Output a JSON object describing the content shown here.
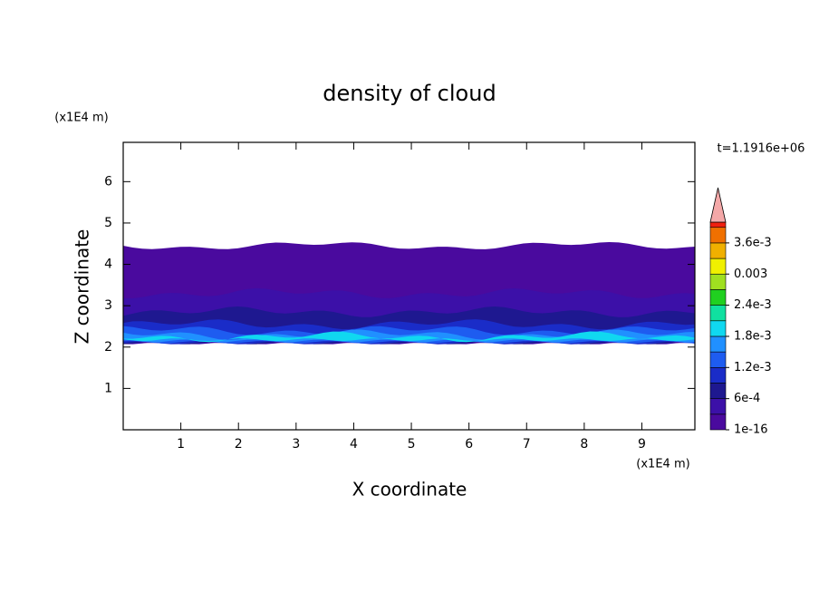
{
  "chart_data": {
    "type": "contour",
    "title": "density of cloud",
    "x_label": "X coordinate",
    "y_label": "Z coordinate",
    "x_unit": "(x1E4 m)",
    "y_unit": "(x1E4 m)",
    "time_label": "t=1.1916e+06",
    "xlim": [
      0,
      9.92
    ],
    "ylim": [
      0,
      6.95
    ],
    "xticks": [
      1,
      2,
      3,
      4,
      5,
      6,
      7,
      8,
      9
    ],
    "yticks": [
      1,
      2,
      3,
      4,
      5,
      6
    ],
    "colorbar": {
      "levels": [
        1e-16,
        0.0003,
        0.0006,
        0.0009,
        0.0012,
        0.0015,
        0.0018,
        0.0021,
        0.0024,
        0.0027,
        0.003,
        0.0033,
        0.0036,
        0.0039
      ],
      "colors": [
        "#4a0a9e",
        "#3c10a8",
        "#1e1890",
        "#1a2cc8",
        "#1e5cf0",
        "#2090ff",
        "#10d8f0",
        "#10e0a0",
        "#20d020",
        "#a0e020",
        "#f0f000",
        "#f0b000",
        "#f07000",
        "#f02010"
      ],
      "extend_color": "#f4a8a8",
      "clim": [
        0,
        0.004
      ],
      "ticks": [
        1e-16,
        {
          "value": 0.0006,
          "label": "6e-4"
        },
        {
          "value": 0.0012,
          "label": "1.2e-3"
        },
        {
          "value": 0.0018,
          "label": "1.8e-3"
        },
        {
          "value": 0.0024,
          "label": "2.4e-3"
        },
        0.003,
        {
          "value": 0.0036,
          "label": "3.6e-3"
        }
      ]
    },
    "layers": [
      {
        "z": [
          2.1,
          4.45
        ]
      },
      {
        "z": [
          2.1,
          3.3
        ]
      },
      {
        "z": [
          2.1,
          2.85
        ]
      },
      {
        "z": [
          2.1,
          2.55
        ]
      },
      {
        "z": [
          2.12,
          2.4
        ]
      },
      {
        "z": [
          2.15,
          2.3
        ]
      },
      {
        "z": [
          2.18,
          2.25
        ]
      }
    ]
  }
}
